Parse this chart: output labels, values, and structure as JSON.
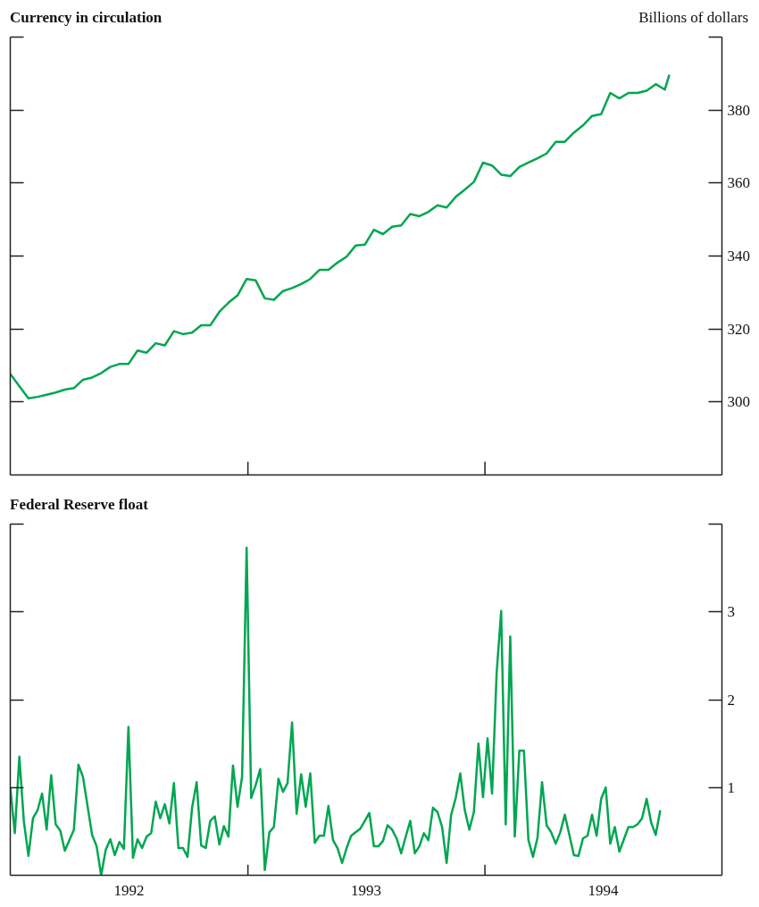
{
  "chart_data": [
    {
      "type": "line",
      "title": "Currency in circulation",
      "ylabel": "Billions of dollars",
      "x": [
        "1992-01-01",
        "1992-01-15",
        "1992-01-29",
        "1992-02-12",
        "1992-02-26",
        "1992-03-11",
        "1992-03-25",
        "1992-04-08",
        "1992-04-22",
        "1992-05-06",
        "1992-05-20",
        "1992-06-03",
        "1992-06-17",
        "1992-07-01",
        "1992-07-15",
        "1992-07-29",
        "1992-08-12",
        "1992-08-26",
        "1992-09-09",
        "1992-09-23",
        "1992-10-07",
        "1992-10-21",
        "1992-11-04",
        "1992-11-18",
        "1992-12-02",
        "1992-12-16",
        "1992-12-30",
        "1993-01-13",
        "1993-01-27",
        "1993-02-10",
        "1993-02-24",
        "1993-03-10",
        "1993-03-24",
        "1993-04-07",
        "1993-04-21",
        "1993-05-05",
        "1993-05-19",
        "1993-06-02",
        "1993-06-16",
        "1993-06-30",
        "1993-07-14",
        "1993-07-28",
        "1993-08-11",
        "1993-08-25",
        "1993-09-08",
        "1993-09-22",
        "1993-10-06",
        "1993-10-20",
        "1993-11-03",
        "1993-11-17",
        "1993-12-01",
        "1993-12-15",
        "1993-12-29",
        "1994-01-12",
        "1994-01-26",
        "1994-02-09",
        "1994-02-23",
        "1994-03-09",
        "1994-03-23",
        "1994-04-06",
        "1994-04-20",
        "1994-05-04",
        "1994-05-18",
        "1994-06-01",
        "1994-06-15",
        "1994-06-29",
        "1994-07-13",
        "1994-07-27",
        "1994-08-10",
        "1994-08-24",
        "1994-09-07",
        "1994-09-21",
        "1994-10-05",
        "1994-10-12"
      ],
      "series": [
        {
          "color": "#00a651",
          "values": [
            307.7,
            304.3,
            301.0,
            301.4,
            302.0,
            302.6,
            303.4,
            303.8,
            306.1,
            306.7,
            307.9,
            309.6,
            310.4,
            310.4,
            314.1,
            313.5,
            316.1,
            315.5,
            319.4,
            318.6,
            319.0,
            321.0,
            321.0,
            324.7,
            327.2,
            329.2,
            333.7,
            333.3,
            328.4,
            328.0,
            330.4,
            331.2,
            332.3,
            333.7,
            336.2,
            336.2,
            338.2,
            339.8,
            342.9,
            343.1,
            347.2,
            346.0,
            348.0,
            348.4,
            351.5,
            350.9,
            352.1,
            353.9,
            353.3,
            356.2,
            358.2,
            360.3,
            365.6,
            364.8,
            362.3,
            361.9,
            364.4,
            365.6,
            366.8,
            368.1,
            371.3,
            371.3,
            373.8,
            375.8,
            378.4,
            378.9,
            384.7,
            383.2,
            384.7,
            384.7,
            385.3,
            387.1,
            385.6,
            389.7
          ]
        }
      ],
      "xlim": [
        "1992-01-01",
        "1995-01-01"
      ],
      "xticks": [
        {
          "value": "1993-01-01",
          "label": null
        },
        {
          "value": "1994-01-01",
          "label": null
        }
      ],
      "ylim": [
        280,
        400
      ],
      "yticks": [
        300,
        320,
        340,
        360,
        380,
        {
          "value": 400,
          "label": null
        }
      ],
      "tick_labels": "y"
    },
    {
      "type": "line",
      "title": "Federal Reserve float",
      "x": [
        "1992-01-01",
        "1992-01-08",
        "1992-01-15",
        "1992-01-22",
        "1992-01-29",
        "1992-02-05",
        "1992-02-12",
        "1992-02-19",
        "1992-02-26",
        "1992-03-04",
        "1992-03-11",
        "1992-03-18",
        "1992-03-25",
        "1992-04-01",
        "1992-04-08",
        "1992-04-15",
        "1992-04-22",
        "1992-04-29",
        "1992-05-06",
        "1992-05-13",
        "1992-05-20",
        "1992-05-27",
        "1992-06-03",
        "1992-06-10",
        "1992-06-17",
        "1992-06-24",
        "1992-07-01",
        "1992-07-08",
        "1992-07-15",
        "1992-07-22",
        "1992-07-29",
        "1992-08-05",
        "1992-08-12",
        "1992-08-19",
        "1992-08-26",
        "1992-09-02",
        "1992-09-09",
        "1992-09-16",
        "1992-09-23",
        "1992-09-30",
        "1992-10-07",
        "1992-10-14",
        "1992-10-21",
        "1992-10-28",
        "1992-11-04",
        "1992-11-11",
        "1992-11-18",
        "1992-11-25",
        "1992-12-02",
        "1992-12-09",
        "1992-12-16",
        "1992-12-23",
        "1992-12-30",
        "1993-01-06",
        "1993-01-13",
        "1993-01-20",
        "1993-01-27",
        "1993-02-03",
        "1993-02-10",
        "1993-02-17",
        "1993-02-24",
        "1993-03-03",
        "1993-03-10",
        "1993-03-17",
        "1993-03-24",
        "1993-03-31",
        "1993-04-07",
        "1993-04-14",
        "1993-04-21",
        "1993-04-28",
        "1993-05-05",
        "1993-05-12",
        "1993-05-19",
        "1993-05-26",
        "1993-06-02",
        "1993-06-09",
        "1993-06-16",
        "1993-06-23",
        "1993-06-30",
        "1993-07-07",
        "1993-07-14",
        "1993-07-21",
        "1993-07-28",
        "1993-08-04",
        "1993-08-11",
        "1993-08-18",
        "1993-08-25",
        "1993-09-01",
        "1993-09-08",
        "1993-09-15",
        "1993-09-22",
        "1993-09-29",
        "1993-10-06",
        "1993-10-13",
        "1993-10-20",
        "1993-10-27",
        "1993-11-03",
        "1993-11-10",
        "1993-11-17",
        "1993-11-24",
        "1993-12-01",
        "1993-12-08",
        "1993-12-15",
        "1993-12-22",
        "1993-12-29",
        "1994-01-05",
        "1994-01-12",
        "1994-01-19",
        "1994-01-26",
        "1994-02-02",
        "1994-02-09",
        "1994-02-16",
        "1994-02-23",
        "1994-03-02",
        "1994-03-09",
        "1994-03-16",
        "1994-03-23",
        "1994-03-30",
        "1994-04-06",
        "1994-04-13",
        "1994-04-20",
        "1994-04-27",
        "1994-05-04",
        "1994-05-11",
        "1994-05-18",
        "1994-05-25",
        "1994-06-01",
        "1994-06-08",
        "1994-06-15",
        "1994-06-22",
        "1994-06-29",
        "1994-07-06",
        "1994-07-13",
        "1994-07-20",
        "1994-07-27",
        "1994-08-03",
        "1994-08-10",
        "1994-08-17",
        "1994-08-24",
        "1994-08-31",
        "1994-09-07",
        "1994-09-14",
        "1994-09-21",
        "1994-09-28"
      ],
      "series": [
        {
          "color": "#00a651",
          "values": [
            1.0,
            0.48,
            1.35,
            0.61,
            0.22,
            0.65,
            0.74,
            0.93,
            0.52,
            1.14,
            0.58,
            0.51,
            0.28,
            0.4,
            0.52,
            1.26,
            1.12,
            0.79,
            0.46,
            0.33,
            0.0,
            0.29,
            0.41,
            0.23,
            0.38,
            0.3,
            1.69,
            0.2,
            0.41,
            0.31,
            0.44,
            0.48,
            0.84,
            0.65,
            0.81,
            0.59,
            1.05,
            0.31,
            0.31,
            0.21,
            0.77,
            1.06,
            0.34,
            0.31,
            0.62,
            0.67,
            0.35,
            0.56,
            0.44,
            1.25,
            0.78,
            1.12,
            3.73,
            0.88,
            1.03,
            1.21,
            0.06,
            0.49,
            0.55,
            1.1,
            0.95,
            1.05,
            1.74,
            0.7,
            1.15,
            0.78,
            1.16,
            0.37,
            0.45,
            0.45,
            0.79,
            0.4,
            0.31,
            0.14,
            0.31,
            0.45,
            0.49,
            0.53,
            0.62,
            0.71,
            0.33,
            0.33,
            0.39,
            0.57,
            0.52,
            0.42,
            0.25,
            0.44,
            0.62,
            0.25,
            0.33,
            0.48,
            0.4,
            0.77,
            0.72,
            0.55,
            0.14,
            0.69,
            0.88,
            1.16,
            0.74,
            0.52,
            0.72,
            1.5,
            0.89,
            1.56,
            0.93,
            2.3,
            3.01,
            0.58,
            2.72,
            0.44,
            1.42,
            1.42,
            0.4,
            0.21,
            0.43,
            1.06,
            0.57,
            0.49,
            0.36,
            0.49,
            0.69,
            0.46,
            0.23,
            0.22,
            0.42,
            0.45,
            0.69,
            0.45,
            0.87,
            1.0,
            0.36,
            0.55,
            0.27,
            0.41,
            0.55,
            0.55,
            0.58,
            0.65,
            0.87,
            0.6,
            0.46,
            0.74
          ]
        }
      ],
      "xlim": [
        "1992-01-01",
        "1995-01-01"
      ],
      "xticks": [
        {
          "value": "1993-01-01",
          "label": null
        },
        {
          "value": "1994-01-01",
          "label": null
        },
        {
          "value": "1992-07-02",
          "label": "1992"
        },
        {
          "value": "1993-07-02",
          "label": "1993"
        },
        {
          "value": "1994-07-02",
          "label": "1994"
        }
      ],
      "ylim": [
        0,
        4
      ],
      "yticks": [
        1,
        2,
        3,
        {
          "value": 4,
          "label": null
        }
      ]
    }
  ]
}
